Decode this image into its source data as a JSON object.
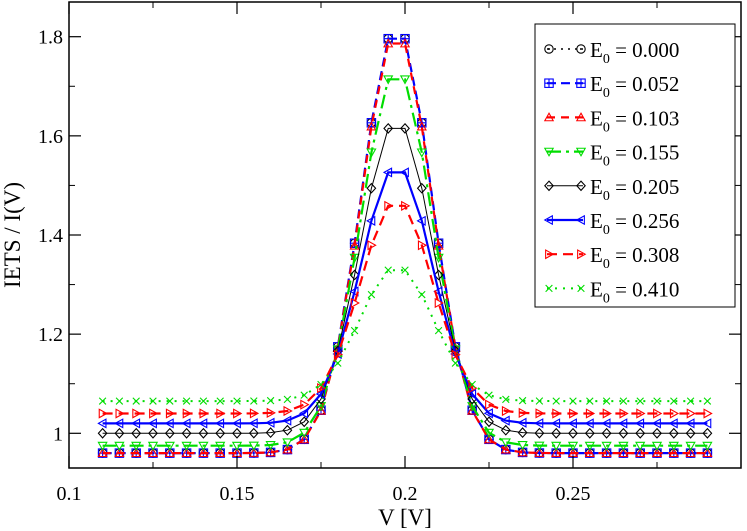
{
  "chart_data": {
    "type": "line",
    "xlabel": "V [V]",
    "ylabel": "IETS / I(V)",
    "xlim": [
      0.1,
      0.3
    ],
    "ylim": [
      0.93,
      1.87
    ],
    "xticks": [
      0.1,
      0.15,
      0.2,
      0.25
    ],
    "xtick_labels": [
      "0.1",
      "0.15",
      "0.2",
      "0.25"
    ],
    "yticks": [
      1.0,
      1.2,
      1.4,
      1.6,
      1.8
    ],
    "ytick_labels": [
      "1",
      "1.2",
      "1.4",
      "1.6",
      "1.8"
    ],
    "legend_position": "top-right",
    "x_sampling": {
      "start": 0.11,
      "step": 0.005,
      "count": 37
    },
    "series": [
      {
        "name": "E0 = 0.000",
        "label_prefix": "E",
        "label_sub": "0",
        "label_suffix": " = 0.000",
        "color": "#000000",
        "marker": "circle-dot",
        "dash": "2,5",
        "line_width": 1.5,
        "base": 0.96,
        "peak": 1.82,
        "sigma": 0.0105
      },
      {
        "name": "E0 = 0.052",
        "label_prefix": "E",
        "label_sub": "0",
        "label_suffix": " = 0.052",
        "color": "#0000ff",
        "marker": "square-plus",
        "dash": "9,5",
        "line_width": 2.2,
        "base": 0.96,
        "peak": 1.82,
        "sigma": 0.0105
      },
      {
        "name": "E0 = 0.103",
        "label_prefix": "E",
        "label_sub": "0",
        "label_suffix": " = 0.103",
        "color": "#ff0000",
        "marker": "triangle-up",
        "dash": "8,6",
        "line_width": 2.2,
        "base": 0.96,
        "peak": 1.81,
        "sigma": 0.0105
      },
      {
        "name": "E0 = 0.155",
        "label_prefix": "E",
        "label_sub": "0",
        "label_suffix": " = 0.155",
        "color": "#00dd00",
        "marker": "triangle-down",
        "dash": "14,5,3,5",
        "line_width": 2.2,
        "base": 0.975,
        "peak": 1.735,
        "sigma": 0.0106
      },
      {
        "name": "E0 = 0.205",
        "label_prefix": "E",
        "label_sub": "0",
        "label_suffix": " = 0.205",
        "color": "#000000",
        "marker": "diamond",
        "dash": "",
        "line_width": 1.0,
        "base": 1.0,
        "peak": 1.632,
        "sigma": 0.0107
      },
      {
        "name": "E0 = 0.256",
        "label_prefix": "E",
        "label_sub": "0",
        "label_suffix": " = 0.256",
        "color": "#0000ff",
        "marker": "triangle-left",
        "dash": "",
        "line_width": 2.2,
        "base": 1.02,
        "peak": 1.54,
        "sigma": 0.0108
      },
      {
        "name": "E0 = 0.308",
        "label_prefix": "E",
        "label_sub": "0",
        "label_suffix": " = 0.308",
        "color": "#ff0000",
        "marker": "triangle-right",
        "dash": "10,6",
        "line_width": 2.2,
        "base": 1.04,
        "peak": 1.47,
        "sigma": 0.0109
      },
      {
        "name": "E0 = 0.410",
        "label_prefix": "E",
        "label_sub": "0",
        "label_suffix": " = 0.410",
        "color": "#00dd00",
        "marker": "cross",
        "dash": "2,6",
        "line_width": 2.0,
        "base": 1.065,
        "peak": 1.336,
        "sigma": 0.011
      }
    ]
  }
}
